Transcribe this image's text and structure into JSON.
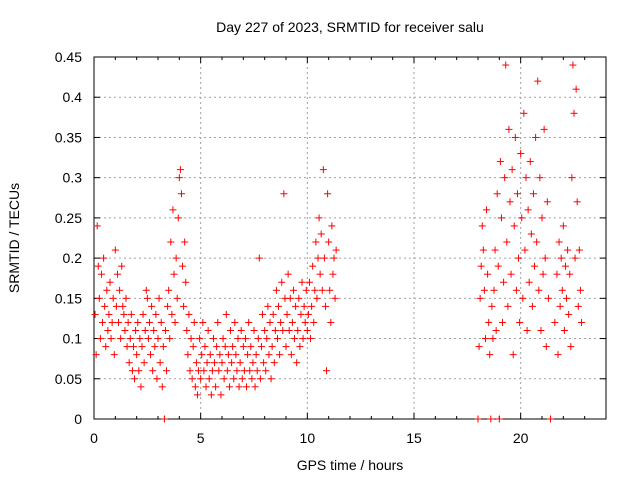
{
  "chart_data": {
    "type": "scatter",
    "title": "Day 227 of 2023, SRMTID for receiver salu",
    "xlabel": "GPS time / hours",
    "ylabel": "SRMTID / TECUs",
    "xlim": [
      0,
      24
    ],
    "ylim": [
      0,
      0.45
    ],
    "x_ticks": [
      0,
      5,
      10,
      15,
      20
    ],
    "x_tick_labels": [
      "0",
      "5",
      "10",
      "15",
      "20"
    ],
    "y_ticks": [
      0,
      0.05,
      0.1,
      0.15,
      0.2,
      0.25,
      0.3,
      0.35,
      0.4,
      0.45
    ],
    "y_tick_labels": [
      "0",
      "0.05",
      "0.1",
      "0.15",
      "0.2",
      "0.25",
      "0.3",
      "0.35",
      "0.4",
      "0.45"
    ],
    "grid": true,
    "marker": "+",
    "color": "#ff0000",
    "series": [
      {
        "name": "SRMTID",
        "points": [
          [
            0.05,
            0.13
          ],
          [
            0.1,
            0.08
          ],
          [
            0.15,
            0.24
          ],
          [
            0.2,
            0.19
          ],
          [
            0.25,
            0.15
          ],
          [
            0.3,
            0.1
          ],
          [
            0.35,
            0.18
          ],
          [
            0.4,
            0.12
          ],
          [
            0.45,
            0.2
          ],
          [
            0.5,
            0.14
          ],
          [
            0.55,
            0.09
          ],
          [
            0.6,
            0.16
          ],
          [
            0.65,
            0.11
          ],
          [
            0.7,
            0.13
          ],
          [
            0.75,
            0.17
          ],
          [
            0.8,
            0.1
          ],
          [
            0.85,
            0.12
          ],
          [
            0.9,
            0.15
          ],
          [
            0.95,
            0.08
          ],
          [
            1.0,
            0.21
          ],
          [
            1.05,
            0.14
          ],
          [
            1.1,
            0.18
          ],
          [
            1.15,
            0.12
          ],
          [
            1.2,
            0.16
          ],
          [
            1.25,
            0.1
          ],
          [
            1.3,
            0.19
          ],
          [
            1.35,
            0.14
          ],
          [
            1.4,
            0.13
          ],
          [
            1.45,
            0.11
          ],
          [
            1.5,
            0.15
          ],
          [
            1.55,
            0.09
          ],
          [
            1.6,
            0.12
          ],
          [
            1.65,
            0.07
          ],
          [
            1.7,
            0.1
          ],
          [
            1.75,
            0.13
          ],
          [
            1.8,
            0.06
          ],
          [
            1.85,
            0.09
          ],
          [
            1.9,
            0.05
          ],
          [
            1.95,
            0.11
          ],
          [
            2.0,
            0.08
          ],
          [
            2.05,
            0.12
          ],
          [
            2.1,
            0.06
          ],
          [
            2.15,
            0.1
          ],
          [
            2.2,
            0.04
          ],
          [
            2.25,
            0.09
          ],
          [
            2.3,
            0.13
          ],
          [
            2.35,
            0.07
          ],
          [
            2.4,
            0.11
          ],
          [
            2.45,
            0.16
          ],
          [
            2.5,
            0.15
          ],
          [
            2.55,
            0.1
          ],
          [
            2.6,
            0.12
          ],
          [
            2.65,
            0.08
          ],
          [
            2.7,
            0.14
          ],
          [
            2.75,
            0.06
          ],
          [
            2.8,
            0.11
          ],
          [
            2.85,
            0.09
          ],
          [
            2.9,
            0.13
          ],
          [
            2.95,
            0.05
          ],
          [
            3.0,
            0.1
          ],
          [
            3.05,
            0.15
          ],
          [
            3.1,
            0.07
          ],
          [
            3.15,
            0.12
          ],
          [
            3.2,
            0.04
          ],
          [
            3.25,
            0.09
          ],
          [
            3.3,
            0.0
          ],
          [
            3.35,
            0.11
          ],
          [
            3.4,
            0.06
          ],
          [
            3.45,
            0.14
          ],
          [
            3.5,
            0.16
          ],
          [
            3.55,
            0.1
          ],
          [
            3.6,
            0.22
          ],
          [
            3.65,
            0.13
          ],
          [
            3.7,
            0.26
          ],
          [
            3.75,
            0.18
          ],
          [
            3.8,
            0.12
          ],
          [
            3.85,
            0.2
          ],
          [
            3.9,
            0.15
          ],
          [
            3.95,
            0.25
          ],
          [
            4.0,
            0.3
          ],
          [
            4.05,
            0.31
          ],
          [
            4.1,
            0.28
          ],
          [
            4.15,
            0.19
          ],
          [
            4.2,
            0.14
          ],
          [
            4.25,
            0.22
          ],
          [
            4.3,
            0.17
          ],
          [
            4.35,
            0.11
          ],
          [
            4.4,
            0.08
          ],
          [
            4.45,
            0.13
          ],
          [
            4.5,
            0.06
          ],
          [
            4.55,
            0.1
          ],
          [
            4.6,
            0.05
          ],
          [
            4.65,
            0.09
          ],
          [
            4.7,
            0.12
          ],
          [
            4.75,
            0.04
          ],
          [
            4.8,
            0.07
          ],
          [
            4.85,
            0.03
          ],
          [
            4.9,
            0.06
          ],
          [
            4.95,
            0.1
          ],
          [
            5.0,
            0.05
          ],
          [
            5.05,
            0.08
          ],
          [
            5.1,
            0.12
          ],
          [
            5.15,
            0.06
          ],
          [
            5.2,
            0.09
          ],
          [
            5.25,
            0.04
          ],
          [
            5.3,
            0.07
          ],
          [
            5.35,
            0.11
          ],
          [
            5.4,
            0.05
          ],
          [
            5.45,
            0.08
          ],
          [
            5.5,
            0.03
          ],
          [
            5.55,
            0.06
          ],
          [
            5.6,
            0.1
          ],
          [
            5.65,
            0.07
          ],
          [
            5.7,
            0.04
          ],
          [
            5.75,
            0.09
          ],
          [
            5.8,
            0.12
          ],
          [
            5.85,
            0.06
          ],
          [
            5.9,
            0.08
          ],
          [
            5.95,
            0.03
          ],
          [
            6.0,
            0.07
          ],
          [
            6.05,
            0.1
          ],
          [
            6.1,
            0.05
          ],
          [
            6.15,
            0.09
          ],
          [
            6.2,
            0.13
          ],
          [
            6.25,
            0.06
          ],
          [
            6.3,
            0.08
          ],
          [
            6.35,
            0.04
          ],
          [
            6.4,
            0.11
          ],
          [
            6.45,
            0.07
          ],
          [
            6.5,
            0.09
          ],
          [
            6.55,
            0.05
          ],
          [
            6.6,
            0.12
          ],
          [
            6.65,
            0.08
          ],
          [
            6.7,
            0.06
          ],
          [
            6.75,
            0.1
          ],
          [
            6.8,
            0.04
          ],
          [
            6.85,
            0.07
          ],
          [
            6.9,
            0.11
          ],
          [
            6.95,
            0.05
          ],
          [
            7.0,
            0.09
          ],
          [
            7.05,
            0.06
          ],
          [
            7.1,
            0.1
          ],
          [
            7.15,
            0.04
          ],
          [
            7.2,
            0.08
          ],
          [
            7.25,
            0.12
          ],
          [
            7.3,
            0.06
          ],
          [
            7.35,
            0.09
          ],
          [
            7.4,
            0.05
          ],
          [
            7.45,
            0.07
          ],
          [
            7.5,
            0.11
          ],
          [
            7.55,
            0.04
          ],
          [
            7.6,
            0.08
          ],
          [
            7.65,
            0.06
          ],
          [
            7.7,
            0.1
          ],
          [
            7.75,
            0.2
          ],
          [
            7.8,
            0.05
          ],
          [
            7.85,
            0.09
          ],
          [
            7.9,
            0.13
          ],
          [
            7.95,
            0.07
          ],
          [
            8.0,
            0.11
          ],
          [
            8.05,
            0.06
          ],
          [
            8.1,
            0.1
          ],
          [
            8.15,
            0.14
          ],
          [
            8.2,
            0.08
          ],
          [
            8.25,
            0.12
          ],
          [
            8.3,
            0.05
          ],
          [
            8.35,
            0.09
          ],
          [
            8.4,
            0.13
          ],
          [
            8.45,
            0.07
          ],
          [
            8.5,
            0.11
          ],
          [
            8.55,
            0.16
          ],
          [
            8.6,
            0.1
          ],
          [
            8.65,
            0.14
          ],
          [
            8.7,
            0.08
          ],
          [
            8.75,
            0.12
          ],
          [
            8.8,
            0.17
          ],
          [
            8.85,
            0.11
          ],
          [
            8.9,
            0.28
          ],
          [
            8.95,
            0.15
          ],
          [
            9.0,
            0.09
          ],
          [
            9.05,
            0.13
          ],
          [
            9.1,
            0.18
          ],
          [
            9.15,
            0.11
          ],
          [
            9.2,
            0.15
          ],
          [
            9.25,
            0.08
          ],
          [
            9.3,
            0.12
          ],
          [
            9.35,
            0.16
          ],
          [
            9.4,
            0.1
          ],
          [
            9.45,
            0.14
          ],
          [
            9.5,
            0.07
          ],
          [
            9.55,
            0.11
          ],
          [
            9.6,
            0.15
          ],
          [
            9.65,
            0.09
          ],
          [
            9.7,
            0.13
          ],
          [
            9.75,
            0.17
          ],
          [
            9.8,
            0.1
          ],
          [
            9.85,
            0.14
          ],
          [
            9.9,
            0.12
          ],
          [
            9.95,
            0.16
          ],
          [
            10.0,
            0.11
          ],
          [
            10.05,
            0.13
          ],
          [
            10.1,
            0.17
          ],
          [
            10.15,
            0.1
          ],
          [
            10.2,
            0.14
          ],
          [
            10.25,
            0.19
          ],
          [
            10.3,
            0.12
          ],
          [
            10.35,
            0.16
          ],
          [
            10.4,
            0.22
          ],
          [
            10.45,
            0.15
          ],
          [
            10.5,
            0.2
          ],
          [
            10.55,
            0.25
          ],
          [
            10.6,
            0.18
          ],
          [
            10.65,
            0.23
          ],
          [
            10.7,
            0.16
          ],
          [
            10.75,
            0.31
          ],
          [
            10.8,
            0.2
          ],
          [
            10.85,
            0.14
          ],
          [
            10.9,
            0.06
          ],
          [
            10.95,
            0.28
          ],
          [
            11.0,
            0.22
          ],
          [
            11.05,
            0.16
          ],
          [
            11.1,
            0.12
          ],
          [
            11.15,
            0.24
          ],
          [
            11.2,
            0.18
          ],
          [
            11.25,
            0.2
          ],
          [
            11.3,
            0.15
          ],
          [
            11.35,
            0.21
          ],
          [
            18.0,
            0.0
          ],
          [
            18.05,
            0.09
          ],
          [
            18.1,
            0.15
          ],
          [
            18.15,
            0.19
          ],
          [
            18.2,
            0.24
          ],
          [
            18.25,
            0.21
          ],
          [
            18.3,
            0.16
          ],
          [
            18.35,
            0.1
          ],
          [
            18.4,
            0.26
          ],
          [
            18.45,
            0.18
          ],
          [
            18.5,
            0.12
          ],
          [
            18.55,
            0.08
          ],
          [
            18.6,
            0.0
          ],
          [
            18.65,
            0.14
          ],
          [
            18.7,
            0.1
          ],
          [
            18.75,
            0.16
          ],
          [
            18.8,
            0.21
          ],
          [
            18.85,
            0.11
          ],
          [
            18.9,
            0.28
          ],
          [
            18.95,
            0.19
          ],
          [
            19.0,
            0.0
          ],
          [
            19.05,
            0.32
          ],
          [
            19.1,
            0.25
          ],
          [
            19.15,
            0.12
          ],
          [
            19.2,
            0.17
          ],
          [
            19.25,
            0.3
          ],
          [
            19.3,
            0.44
          ],
          [
            19.35,
            0.22
          ],
          [
            19.4,
            0.14
          ],
          [
            19.45,
            0.36
          ],
          [
            19.5,
            0.27
          ],
          [
            19.55,
            0.18
          ],
          [
            19.6,
            0.31
          ],
          [
            19.65,
            0.08
          ],
          [
            19.7,
            0.24
          ],
          [
            19.75,
            0.35
          ],
          [
            19.8,
            0.16
          ],
          [
            19.85,
            0.28
          ],
          [
            19.9,
            0.2
          ],
          [
            19.95,
            0.12
          ],
          [
            20.0,
            0.33
          ],
          [
            20.05,
            0.25
          ],
          [
            20.1,
            0.15
          ],
          [
            20.15,
            0.38
          ],
          [
            20.2,
            0.21
          ],
          [
            20.25,
            0.3
          ],
          [
            20.3,
            0.11
          ],
          [
            20.35,
            0.26
          ],
          [
            20.4,
            0.17
          ],
          [
            20.45,
            0.32
          ],
          [
            20.5,
            0.23
          ],
          [
            20.55,
            0.14
          ],
          [
            20.6,
            0.28
          ],
          [
            20.65,
            0.19
          ],
          [
            20.7,
            0.35
          ],
          [
            20.75,
            0.22
          ],
          [
            20.8,
            0.42
          ],
          [
            20.85,
            0.16
          ],
          [
            20.9,
            0.3
          ],
          [
            20.95,
            0.11
          ],
          [
            21.0,
            0.25
          ],
          [
            21.05,
            0.18
          ],
          [
            21.1,
            0.36
          ],
          [
            21.15,
            0.2
          ],
          [
            21.2,
            0.09
          ],
          [
            21.25,
            0.27
          ],
          [
            21.3,
            0.15
          ],
          [
            21.4,
            0.0
          ],
          [
            21.6,
            0.12
          ],
          [
            21.7,
            0.18
          ],
          [
            21.75,
            0.08
          ],
          [
            21.8,
            0.22
          ],
          [
            21.85,
            0.14
          ],
          [
            21.9,
            0.2
          ],
          [
            21.95,
            0.16
          ],
          [
            22.0,
            0.24
          ],
          [
            22.05,
            0.11
          ],
          [
            22.1,
            0.19
          ],
          [
            22.15,
            0.15
          ],
          [
            22.2,
            0.21
          ],
          [
            22.25,
            0.13
          ],
          [
            22.3,
            0.18
          ],
          [
            22.35,
            0.09
          ],
          [
            22.4,
            0.3
          ],
          [
            22.45,
            0.44
          ],
          [
            22.5,
            0.38
          ],
          [
            22.55,
            0.2
          ],
          [
            22.6,
            0.41
          ],
          [
            22.65,
            0.27
          ],
          [
            22.7,
            0.14
          ],
          [
            22.75,
            0.21
          ],
          [
            22.8,
            0.16
          ],
          [
            22.85,
            0.12
          ]
        ]
      }
    ]
  }
}
